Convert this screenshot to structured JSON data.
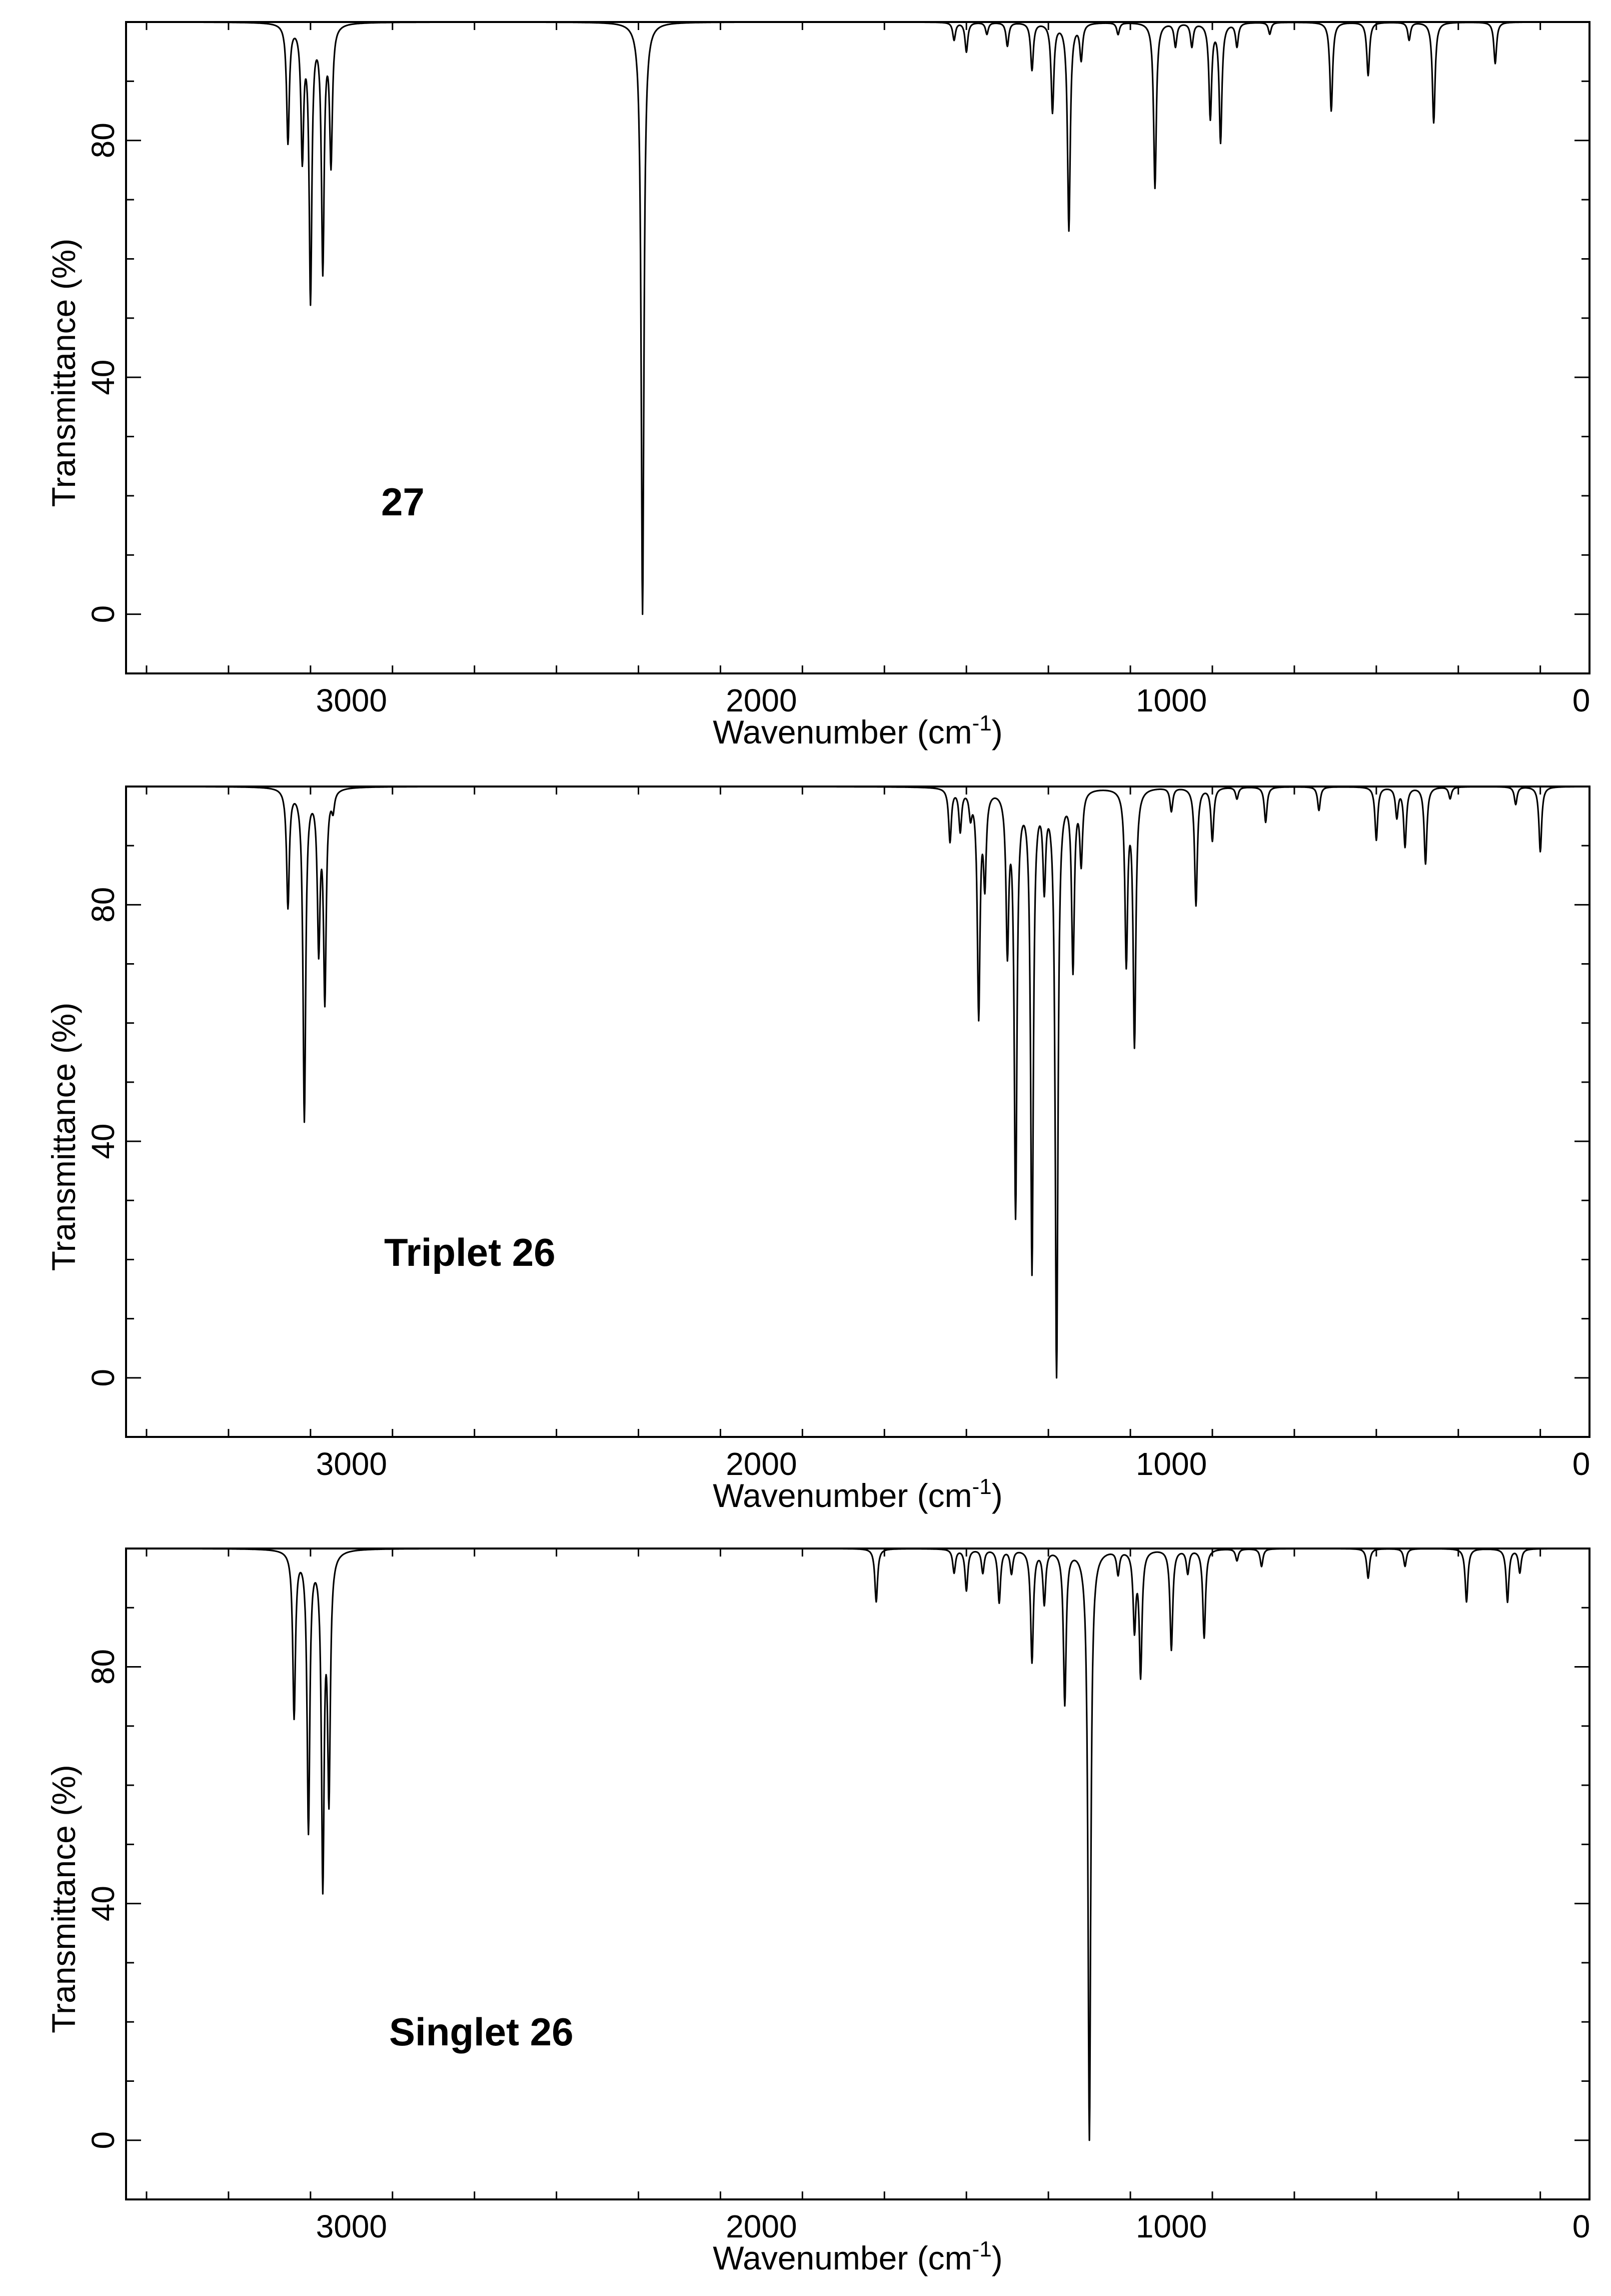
{
  "chart_data": [
    {
      "type": "line",
      "panel_label": "27",
      "xlabel": "Wavenumber (cm",
      "xlabel_sup": "-1",
      "xlabel_close": ")",
      "ylabel": "Transmittance (%)",
      "xlim": [
        3550,
        -20
      ],
      "ylim": [
        -10,
        100
      ],
      "x_ticks": [
        3000,
        2000,
        1000,
        0
      ],
      "y_ticks": [
        0,
        40,
        80
      ],
      "grid": false,
      "line_width_cm1": 8,
      "peaks": [
        {
          "x": 3155,
          "y": 80
        },
        {
          "x": 3120,
          "y": 78
        },
        {
          "x": 3100,
          "y": 54
        },
        {
          "x": 3070,
          "y": 59
        },
        {
          "x": 3050,
          "y": 77
        },
        {
          "x": 2290,
          "y": 0
        },
        {
          "x": 1530,
          "y": 97
        },
        {
          "x": 1500,
          "y": 95
        },
        {
          "x": 1450,
          "y": 98
        },
        {
          "x": 1400,
          "y": 96
        },
        {
          "x": 1340,
          "y": 92
        },
        {
          "x": 1290,
          "y": 85
        },
        {
          "x": 1250,
          "y": 65
        },
        {
          "x": 1220,
          "y": 94
        },
        {
          "x": 1130,
          "y": 98
        },
        {
          "x": 1040,
          "y": 72
        },
        {
          "x": 990,
          "y": 96
        },
        {
          "x": 950,
          "y": 96
        },
        {
          "x": 905,
          "y": 84
        },
        {
          "x": 880,
          "y": 80
        },
        {
          "x": 840,
          "y": 96
        },
        {
          "x": 760,
          "y": 98
        },
        {
          "x": 610,
          "y": 85
        },
        {
          "x": 520,
          "y": 91
        },
        {
          "x": 420,
          "y": 97
        },
        {
          "x": 360,
          "y": 83
        },
        {
          "x": 210,
          "y": 93
        }
      ]
    },
    {
      "type": "line",
      "panel_label": "Triplet 26",
      "xlabel": "Wavenumber (cm",
      "xlabel_sup": "-1",
      "xlabel_close": ")",
      "ylabel": "Transmittance (%)",
      "xlim": [
        3550,
        -20
      ],
      "ylim": [
        -10,
        100
      ],
      "x_ticks": [
        3000,
        2000,
        1000,
        0
      ],
      "y_ticks": [
        0,
        40,
        80
      ],
      "grid": false,
      "line_width_cm1": 8,
      "peaks": [
        {
          "x": 3155,
          "y": 80
        },
        {
          "x": 3115,
          "y": 44
        },
        {
          "x": 3080,
          "y": 74
        },
        {
          "x": 3065,
          "y": 65
        },
        {
          "x": 3045,
          "y": 97
        },
        {
          "x": 1540,
          "y": 91
        },
        {
          "x": 1515,
          "y": 93
        },
        {
          "x": 1490,
          "y": 96
        },
        {
          "x": 1470,
          "y": 62
        },
        {
          "x": 1455,
          "y": 85
        },
        {
          "x": 1400,
          "y": 74
        },
        {
          "x": 1380,
          "y": 29
        },
        {
          "x": 1340,
          "y": 19
        },
        {
          "x": 1310,
          "y": 85
        },
        {
          "x": 1280,
          "y": 0
        },
        {
          "x": 1240,
          "y": 70
        },
        {
          "x": 1220,
          "y": 88
        },
        {
          "x": 1110,
          "y": 71
        },
        {
          "x": 1090,
          "y": 57
        },
        {
          "x": 1000,
          "y": 96
        },
        {
          "x": 940,
          "y": 80
        },
        {
          "x": 900,
          "y": 91
        },
        {
          "x": 840,
          "y": 98
        },
        {
          "x": 770,
          "y": 94
        },
        {
          "x": 640,
          "y": 96
        },
        {
          "x": 500,
          "y": 91
        },
        {
          "x": 450,
          "y": 95
        },
        {
          "x": 430,
          "y": 90
        },
        {
          "x": 380,
          "y": 87
        },
        {
          "x": 320,
          "y": 98
        },
        {
          "x": 160,
          "y": 97
        },
        {
          "x": 100,
          "y": 89
        }
      ]
    },
    {
      "type": "line",
      "panel_label": "Singlet 26",
      "xlabel": "Wavenumber (cm",
      "xlabel_sup": "-1",
      "xlabel_close": ")",
      "ylabel": "Transmittance (%)",
      "xlim": [
        3550,
        -20
      ],
      "ylim": [
        -10,
        100
      ],
      "x_ticks": [
        3000,
        2000,
        1000,
        0
      ],
      "y_ticks": [
        0,
        40,
        80
      ],
      "grid": false,
      "line_width_cm1": 8,
      "peaks": [
        {
          "x": 3140,
          "y": 72
        },
        {
          "x": 3105,
          "y": 53
        },
        {
          "x": 3070,
          "y": 45
        },
        {
          "x": 3055,
          "y": 60
        },
        {
          "x": 1720,
          "y": 91
        },
        {
          "x": 1530,
          "y": 96
        },
        {
          "x": 1500,
          "y": 93
        },
        {
          "x": 1460,
          "y": 96
        },
        {
          "x": 1420,
          "y": 91
        },
        {
          "x": 1390,
          "y": 96
        },
        {
          "x": 1340,
          "y": 81
        },
        {
          "x": 1310,
          "y": 91
        },
        {
          "x": 1260,
          "y": 74
        },
        {
          "x": 1200,
          "y": 0
        },
        {
          "x": 1130,
          "y": 96
        },
        {
          "x": 1090,
          "y": 87
        },
        {
          "x": 1075,
          "y": 79
        },
        {
          "x": 1000,
          "y": 83
        },
        {
          "x": 960,
          "y": 96
        },
        {
          "x": 920,
          "y": 85
        },
        {
          "x": 840,
          "y": 98
        },
        {
          "x": 780,
          "y": 97
        },
        {
          "x": 520,
          "y": 95
        },
        {
          "x": 430,
          "y": 97
        },
        {
          "x": 280,
          "y": 91
        },
        {
          "x": 180,
          "y": 91
        },
        {
          "x": 150,
          "y": 96
        }
      ]
    }
  ]
}
